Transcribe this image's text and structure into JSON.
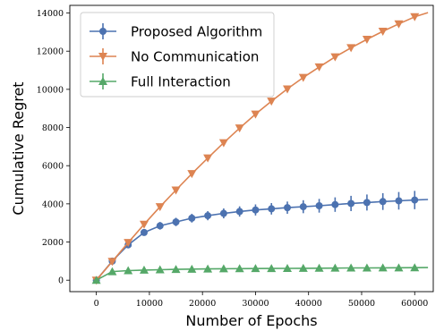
{
  "chart_data": {
    "type": "line",
    "xlabel": "Number of Epochs",
    "ylabel": "Cumulative Regret",
    "xlim": [
      -5000,
      63500
    ],
    "ylim": [
      -600,
      14400
    ],
    "xticks": [
      0,
      10000,
      20000,
      30000,
      40000,
      50000,
      60000
    ],
    "yticks": [
      0,
      2000,
      4000,
      6000,
      8000,
      10000,
      12000,
      14000
    ],
    "grid": false,
    "legend_position": "top-left",
    "marker_x": [
      0,
      3000,
      6000,
      9000,
      12000,
      15000,
      18000,
      21000,
      24000,
      27000,
      30000,
      33000,
      36000,
      39000,
      42000,
      45000,
      48000,
      51000,
      54000,
      57000,
      60000
    ],
    "line_x_end": 62500,
    "series": [
      {
        "name": "Proposed Algorithm",
        "color": "#4c72b0",
        "marker": "circle",
        "values": [
          0,
          1000,
          1850,
          2500,
          2850,
          3050,
          3250,
          3380,
          3500,
          3600,
          3680,
          3740,
          3800,
          3850,
          3900,
          3960,
          4020,
          4070,
          4120,
          4160,
          4200
        ],
        "errors": [
          0,
          60,
          120,
          170,
          200,
          220,
          230,
          240,
          260,
          270,
          290,
          300,
          320,
          340,
          360,
          380,
          400,
          420,
          440,
          460,
          480
        ],
        "end_value": 4230
      },
      {
        "name": "No Communication",
        "color": "#dd8452",
        "marker": "triangle-down",
        "values": [
          0,
          980,
          1970,
          2930,
          3850,
          4720,
          5580,
          6400,
          7200,
          7970,
          8700,
          9380,
          10020,
          10620,
          11170,
          11700,
          12180,
          12620,
          13040,
          13430,
          13800
        ],
        "errors": [
          0,
          20,
          20,
          25,
          25,
          30,
          30,
          30,
          30,
          30,
          30,
          30,
          30,
          30,
          30,
          30,
          30,
          30,
          30,
          30,
          30
        ],
        "end_value": 14020
      },
      {
        "name": "Full Interaction",
        "color": "#55a868",
        "marker": "triangle-up",
        "values": [
          0,
          450,
          500,
          530,
          550,
          565,
          580,
          590,
          600,
          605,
          610,
          615,
          620,
          625,
          630,
          635,
          640,
          643,
          646,
          650,
          655
        ],
        "errors": [
          0,
          15,
          15,
          15,
          15,
          15,
          15,
          15,
          15,
          15,
          15,
          15,
          15,
          15,
          15,
          15,
          15,
          15,
          15,
          15,
          15
        ],
        "end_value": 660
      }
    ]
  }
}
